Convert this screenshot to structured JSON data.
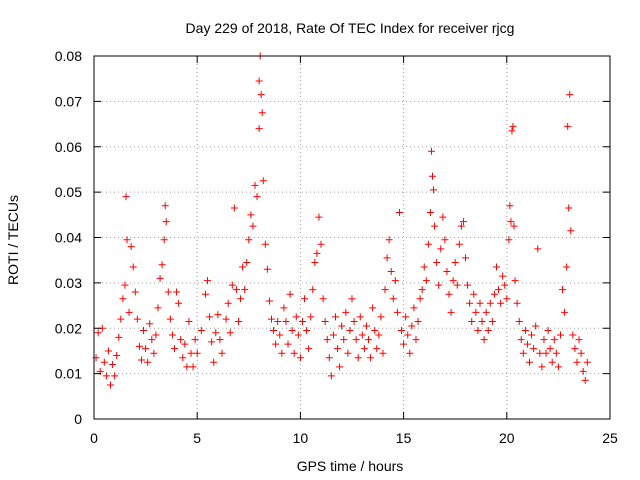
{
  "chart_data": {
    "type": "scatter",
    "title": "Day 229 of 2018, Rate Of TEC Index for receiver rjcg",
    "xlabel": "GPS time / hours",
    "ylabel": "ROTI / TECUs",
    "xlim": [
      0,
      25
    ],
    "ylim": [
      0,
      0.08
    ],
    "xticks": [
      0,
      5,
      10,
      15,
      20,
      25
    ],
    "yticks": [
      0,
      0.01,
      0.02,
      0.03,
      0.04,
      0.05,
      0.06,
      0.07,
      0.08
    ],
    "xtick_labels": [
      "0",
      "5",
      "10",
      "15",
      "20",
      "25"
    ],
    "ytick_labels": [
      "0",
      "0.01",
      "0.02",
      "0.03",
      "0.04",
      "0.05",
      "0.06",
      "0.07",
      "0.08"
    ],
    "grid": true,
    "marker": "+",
    "color": "#ff0000",
    "series": [
      {
        "name": "ROTI",
        "points": [
          [
            0.1,
            0.0135
          ],
          [
            0.2,
            0.019
          ],
          [
            0.3,
            0.0105
          ],
          [
            0.4,
            0.02
          ],
          [
            0.5,
            0.0125
          ],
          [
            0.6,
            0.0095
          ],
          [
            0.7,
            0.015
          ],
          [
            0.8,
            0.0075
          ],
          [
            0.9,
            0.012
          ],
          [
            1.0,
            0.0095
          ],
          [
            1.1,
            0.014
          ],
          [
            1.2,
            0.018
          ],
          [
            1.3,
            0.022
          ],
          [
            1.4,
            0.0265
          ],
          [
            1.5,
            0.0295
          ],
          [
            1.55,
            0.049
          ],
          [
            1.6,
            0.0395
          ],
          [
            1.7,
            0.0235
          ],
          [
            1.8,
            0.038
          ],
          [
            1.9,
            0.0335
          ],
          [
            2.0,
            0.028
          ],
          [
            2.1,
            0.022
          ],
          [
            2.2,
            0.016
          ],
          [
            2.3,
            0.013
          ],
          [
            2.4,
            0.0195
          ],
          [
            2.5,
            0.0155
          ],
          [
            2.6,
            0.0125
          ],
          [
            2.7,
            0.021
          ],
          [
            2.8,
            0.0175
          ],
          [
            2.9,
            0.0145
          ],
          [
            3.0,
            0.0185
          ],
          [
            3.1,
            0.0245
          ],
          [
            3.2,
            0.031
          ],
          [
            3.3,
            0.034
          ],
          [
            3.4,
            0.0395
          ],
          [
            3.45,
            0.047
          ],
          [
            3.5,
            0.0435
          ],
          [
            3.6,
            0.028
          ],
          [
            3.7,
            0.022
          ],
          [
            3.8,
            0.0185
          ],
          [
            3.9,
            0.0155
          ],
          [
            4.0,
            0.028
          ],
          [
            4.1,
            0.0255
          ],
          [
            4.2,
            0.0175
          ],
          [
            4.3,
            0.0135
          ],
          [
            4.4,
            0.0165
          ],
          [
            4.5,
            0.0115
          ],
          [
            4.6,
            0.0215
          ],
          [
            4.7,
            0.0145
          ],
          [
            4.8,
            0.0115
          ],
          [
            4.9,
            0.0175
          ],
          [
            5.0,
            0.0145
          ],
          [
            5.2,
            0.0195
          ],
          [
            5.4,
            0.0275
          ],
          [
            5.5,
            0.0305
          ],
          [
            5.6,
            0.0225
          ],
          [
            5.7,
            0.017
          ],
          [
            5.8,
            0.0125
          ],
          [
            5.9,
            0.019
          ],
          [
            6.0,
            0.023
          ],
          [
            6.1,
            0.0175
          ],
          [
            6.2,
            0.0145
          ],
          [
            6.4,
            0.022
          ],
          [
            6.5,
            0.0255
          ],
          [
            6.6,
            0.019
          ],
          [
            6.7,
            0.0295
          ],
          [
            6.8,
            0.0465
          ],
          [
            6.9,
            0.0285
          ],
          [
            7.0,
            0.0215
          ],
          [
            7.1,
            0.0265
          ],
          [
            7.2,
            0.0335
          ],
          [
            7.3,
            0.0285
          ],
          [
            7.4,
            0.0345
          ],
          [
            7.5,
            0.0395
          ],
          [
            7.6,
            0.045
          ],
          [
            7.7,
            0.0425
          ],
          [
            7.8,
            0.0515
          ],
          [
            7.9,
            0.049
          ],
          [
            8.0,
            0.0745
          ],
          [
            8.0,
            0.064
          ],
          [
            8.05,
            0.08
          ],
          [
            8.1,
            0.0715
          ],
          [
            8.15,
            0.0675
          ],
          [
            8.2,
            0.0525
          ],
          [
            8.3,
            0.0385
          ],
          [
            8.4,
            0.033
          ],
          [
            8.5,
            0.026
          ],
          [
            8.6,
            0.022
          ],
          [
            8.7,
            0.0195
          ],
          [
            8.8,
            0.0165
          ],
          [
            8.9,
            0.0215
          ],
          [
            9.0,
            0.0185
          ],
          [
            9.1,
            0.0145
          ],
          [
            9.2,
            0.0245
          ],
          [
            9.3,
            0.0215
          ],
          [
            9.4,
            0.0165
          ],
          [
            9.5,
            0.0275
          ],
          [
            9.6,
            0.0195
          ],
          [
            9.7,
            0.0145
          ],
          [
            9.8,
            0.0225
          ],
          [
            9.9,
            0.0185
          ],
          [
            10.0,
            0.0135
          ],
          [
            10.1,
            0.0215
          ],
          [
            10.2,
            0.0265
          ],
          [
            10.3,
            0.0195
          ],
          [
            10.4,
            0.0155
          ],
          [
            10.5,
            0.0225
          ],
          [
            10.6,
            0.0285
          ],
          [
            10.7,
            0.0345
          ],
          [
            10.8,
            0.0365
          ],
          [
            10.9,
            0.0445
          ],
          [
            11.0,
            0.0385
          ],
          [
            11.1,
            0.0265
          ],
          [
            11.2,
            0.0215
          ],
          [
            11.3,
            0.0175
          ],
          [
            11.4,
            0.0135
          ],
          [
            11.5,
            0.0095
          ],
          [
            11.6,
            0.0185
          ],
          [
            11.7,
            0.0225
          ],
          [
            11.8,
            0.0155
          ],
          [
            11.9,
            0.0115
          ],
          [
            12.0,
            0.0205
          ],
          [
            12.1,
            0.0175
          ],
          [
            12.2,
            0.0235
          ],
          [
            12.3,
            0.0145
          ],
          [
            12.4,
            0.0195
          ],
          [
            12.5,
            0.0265
          ],
          [
            12.6,
            0.0215
          ],
          [
            12.7,
            0.0175
          ],
          [
            12.8,
            0.0135
          ],
          [
            12.9,
            0.0225
          ],
          [
            13.0,
            0.0185
          ],
          [
            13.1,
            0.0155
          ],
          [
            13.2,
            0.0205
          ],
          [
            13.3,
            0.0175
          ],
          [
            13.4,
            0.0135
          ],
          [
            13.5,
            0.0245
          ],
          [
            13.6,
            0.0195
          ],
          [
            13.7,
            0.0155
          ],
          [
            13.8,
            0.0185
          ],
          [
            13.9,
            0.0225
          ],
          [
            14.0,
            0.0145
          ],
          [
            14.1,
            0.0285
          ],
          [
            14.2,
            0.0355
          ],
          [
            14.3,
            0.0395
          ],
          [
            14.4,
            0.0325
          ],
          [
            14.5,
            0.0265
          ],
          [
            14.6,
            0.0305
          ],
          [
            14.7,
            0.0235
          ],
          [
            14.8,
            0.0455
          ],
          [
            14.9,
            0.0195
          ],
          [
            15.0,
            0.0165
          ],
          [
            15.1,
            0.0225
          ],
          [
            15.2,
            0.0185
          ],
          [
            15.3,
            0.0145
          ],
          [
            15.4,
            0.0205
          ],
          [
            15.5,
            0.0245
          ],
          [
            15.6,
            0.0175
          ],
          [
            15.7,
            0.0215
          ],
          [
            15.8,
            0.0265
          ],
          [
            15.9,
            0.0285
          ],
          [
            16.0,
            0.0335
          ],
          [
            16.1,
            0.0305
          ],
          [
            16.2,
            0.0385
          ],
          [
            16.3,
            0.0455
          ],
          [
            16.35,
            0.059
          ],
          [
            16.4,
            0.0535
          ],
          [
            16.45,
            0.0505
          ],
          [
            16.5,
            0.0425
          ],
          [
            16.6,
            0.0345
          ],
          [
            16.7,
            0.0295
          ],
          [
            16.8,
            0.0375
          ],
          [
            16.9,
            0.0445
          ],
          [
            17.0,
            0.0395
          ],
          [
            17.1,
            0.0325
          ],
          [
            17.2,
            0.0275
          ],
          [
            17.3,
            0.0235
          ],
          [
            17.4,
            0.0305
          ],
          [
            17.5,
            0.0345
          ],
          [
            17.6,
            0.0295
          ],
          [
            17.7,
            0.0385
          ],
          [
            17.8,
            0.0425
          ],
          [
            17.9,
            0.0435
          ],
          [
            18.0,
            0.0355
          ],
          [
            18.1,
            0.0295
          ],
          [
            18.2,
            0.0255
          ],
          [
            18.3,
            0.0215
          ],
          [
            18.4,
            0.0275
          ],
          [
            18.5,
            0.0235
          ],
          [
            18.6,
            0.0195
          ],
          [
            18.7,
            0.0255
          ],
          [
            18.8,
            0.0215
          ],
          [
            18.9,
            0.0175
          ],
          [
            19.0,
            0.0235
          ],
          [
            19.1,
            0.0195
          ],
          [
            19.2,
            0.0255
          ],
          [
            19.3,
            0.0215
          ],
          [
            19.4,
            0.0275
          ],
          [
            19.5,
            0.0335
          ],
          [
            19.6,
            0.0285
          ],
          [
            19.7,
            0.0255
          ],
          [
            19.8,
            0.0315
          ],
          [
            19.9,
            0.0295
          ],
          [
            20.0,
            0.0265
          ],
          [
            20.1,
            0.0395
          ],
          [
            20.15,
            0.047
          ],
          [
            20.2,
            0.0435
          ],
          [
            20.25,
            0.0635
          ],
          [
            20.3,
            0.0645
          ],
          [
            20.35,
            0.0425
          ],
          [
            20.4,
            0.0305
          ],
          [
            20.5,
            0.0255
          ],
          [
            20.6,
            0.0215
          ],
          [
            20.7,
            0.0175
          ],
          [
            20.8,
            0.0145
          ],
          [
            20.9,
            0.0195
          ],
          [
            21.0,
            0.0165
          ],
          [
            21.1,
            0.0125
          ],
          [
            21.2,
            0.0185
          ],
          [
            21.3,
            0.0155
          ],
          [
            21.4,
            0.0205
          ],
          [
            21.5,
            0.0375
          ],
          [
            21.6,
            0.0145
          ],
          [
            21.7,
            0.0115
          ],
          [
            21.8,
            0.0175
          ],
          [
            21.9,
            0.0145
          ],
          [
            22.0,
            0.0195
          ],
          [
            22.1,
            0.0155
          ],
          [
            22.2,
            0.0125
          ],
          [
            22.3,
            0.0175
          ],
          [
            22.4,
            0.0145
          ],
          [
            22.5,
            0.0115
          ],
          [
            22.6,
            0.0185
          ],
          [
            22.7,
            0.0285
          ],
          [
            22.8,
            0.0235
          ],
          [
            22.9,
            0.0335
          ],
          [
            22.95,
            0.0645
          ],
          [
            23.0,
            0.0465
          ],
          [
            23.05,
            0.0715
          ],
          [
            23.1,
            0.0415
          ],
          [
            23.2,
            0.0185
          ],
          [
            23.3,
            0.0155
          ],
          [
            23.4,
            0.0125
          ],
          [
            23.5,
            0.0175
          ],
          [
            23.6,
            0.0145
          ],
          [
            23.7,
            0.0105
          ],
          [
            23.8,
            0.0085
          ],
          [
            23.9,
            0.0125
          ]
        ]
      }
    ]
  }
}
